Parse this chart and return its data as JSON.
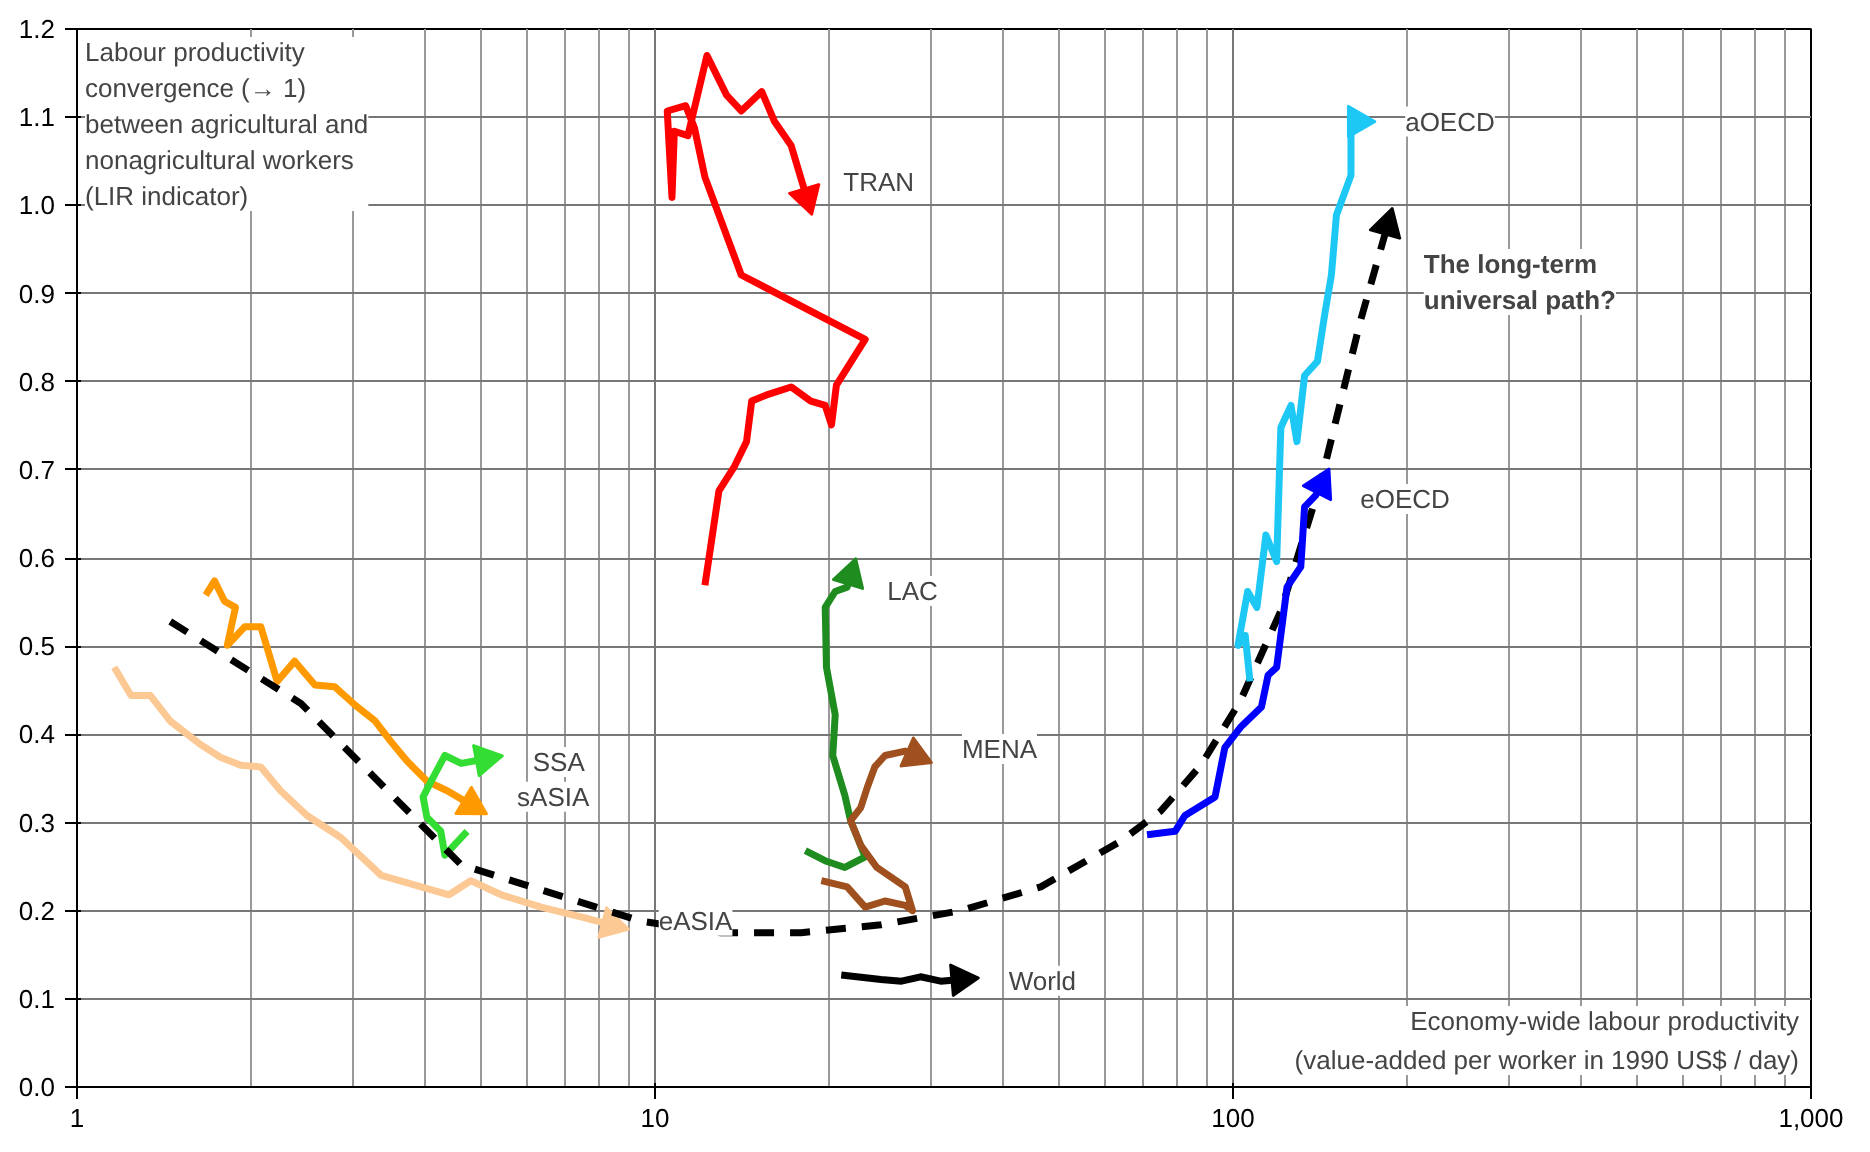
{
  "chart_data": {
    "type": "line",
    "ylabel": "Labour productivity\nconvergence (→ 1)\nbetween agricultural and\nnonagricultural workers\n(LIR indicator)",
    "xlabel": "Economy-wide labour productivity\n(value-added per worker in 1990 US$ / day)",
    "log": "x",
    "grid": true,
    "line_style": "solid",
    "xlim": [
      1,
      1000
    ],
    "ylim": [
      0,
      1.2
    ],
    "xticks": [
      1,
      10,
      100,
      {
        "value": 1000,
        "label": "1,000"
      }
    ],
    "yticks": [
      {
        "value": 0,
        "label": "0.0"
      },
      0.1,
      0.2,
      0.3,
      0.4,
      0.5,
      0.6,
      0.7,
      0.8,
      0.9,
      {
        "value": 1,
        "label": "1.0"
      },
      1.1,
      1.2
    ],
    "series": [
      {
        "name": "eASIA",
        "color": "#fcc894",
        "x": [
          1.16,
          1.24,
          1.34,
          1.45,
          1.64,
          1.77,
          1.92,
          2.08,
          2.25,
          2.5,
          2.86,
          3.36,
          3.94,
          4.4,
          4.8,
          5.42,
          6.35,
          7.45,
          8.4
        ],
        "values": [
          0.476,
          0.444,
          0.444,
          0.415,
          0.388,
          0.374,
          0.365,
          0.363,
          0.336,
          0.308,
          0.283,
          0.24,
          0.227,
          0.218,
          0.234,
          0.218,
          0.204,
          0.193,
          0.184
        ]
      },
      {
        "name": "sASIA",
        "color": "#ff9900",
        "x": [
          1.67,
          1.73,
          1.8,
          1.88,
          1.82,
          1.95,
          2.08,
          2.22,
          2.38,
          2.58,
          2.79,
          3.03,
          3.28,
          3.49,
          3.72,
          4.03,
          4.37,
          4.81
        ],
        "values": [
          0.558,
          0.574,
          0.551,
          0.544,
          0.501,
          0.522,
          0.522,
          0.46,
          0.483,
          0.456,
          0.454,
          0.433,
          0.415,
          0.392,
          0.37,
          0.347,
          0.336,
          0.32
        ]
      },
      {
        "name": "SSA",
        "color": "#33dd33",
        "x": [
          4.73,
          4.33,
          4.26,
          4.03,
          3.97,
          4.1,
          4.33,
          4.62,
          5.08
        ],
        "values": [
          0.29,
          0.263,
          0.29,
          0.306,
          0.329,
          0.347,
          0.376,
          0.367,
          0.372
        ]
      },
      {
        "name": "The long-term universal path?",
        "color": "#000000",
        "line_style": "dashed",
        "x": [
          1.45,
          2.44,
          4.62,
          9.46,
          13.0,
          17.9,
          24.6,
          33.8,
          46.5,
          64.0,
          75.0,
          88.0,
          103,
          121,
          142,
          166,
          185
        ],
        "values": [
          0.528,
          0.435,
          0.252,
          0.188,
          0.175,
          0.175,
          0.184,
          0.2,
          0.227,
          0.279,
          0.313,
          0.365,
          0.438,
          0.54,
          0.687,
          0.868,
          0.977
        ]
      },
      {
        "name": "TRAN",
        "color": "#ff0000",
        "x": [
          12.2,
          12.9,
          13.7,
          14.4,
          14.7,
          15.6,
          17.2,
          18.6,
          19.7,
          20.2,
          20.6,
          23.1,
          14.1,
          12.2,
          11.7,
          11.3,
          10.5,
          10.7,
          10.8,
          11.4,
          12.3,
          13.3,
          14.1,
          15.3,
          16.1,
          17.2,
          18.3
        ],
        "values": [
          0.569,
          0.676,
          0.703,
          0.732,
          0.778,
          0.785,
          0.794,
          0.778,
          0.773,
          0.751,
          0.796,
          0.848,
          0.921,
          1.032,
          1.088,
          1.113,
          1.107,
          1.009,
          1.084,
          1.079,
          1.17,
          1.125,
          1.107,
          1.129,
          1.095,
          1.068,
          1.009
        ]
      },
      {
        "name": "LAC",
        "color": "#1e8c1e",
        "x": [
          18.2,
          19.8,
          21.3,
          23.1,
          21.8,
          21.3,
          20.3,
          20.5,
          19.8,
          19.7,
          20.5,
          21.5,
          21.8
        ],
        "values": [
          0.268,
          0.256,
          0.249,
          0.261,
          0.302,
          0.331,
          0.376,
          0.422,
          0.476,
          0.544,
          0.562,
          0.567,
          0.58
        ]
      },
      {
        "name": "MENA",
        "color": "#a0501e",
        "x": [
          19.4,
          21.5,
          23.1,
          25.0,
          27.1,
          27.9,
          27.1,
          24.2,
          22.7,
          21.8,
          22.7,
          23.3,
          24.0,
          25.0,
          27.1,
          28.2
        ],
        "values": [
          0.234,
          0.227,
          0.204,
          0.211,
          0.206,
          0.2,
          0.227,
          0.249,
          0.274,
          0.302,
          0.317,
          0.34,
          0.363,
          0.376,
          0.381,
          0.376
        ]
      },
      {
        "name": "World",
        "color": "#000000",
        "x": [
          21.0,
          24.6,
          26.7,
          28.8,
          31.2,
          33.8
        ],
        "values": [
          0.127,
          0.122,
          0.12,
          0.125,
          0.12,
          0.122
        ]
      },
      {
        "name": "aOECD",
        "color": "#1ec8f5",
        "x": [
          107,
          105,
          102,
          106,
          110,
          114,
          119,
          121,
          126,
          129,
          133,
          140,
          144,
          148,
          151,
          160,
          160,
          164
        ],
        "values": [
          0.46,
          0.512,
          0.501,
          0.562,
          0.544,
          0.626,
          0.596,
          0.748,
          0.773,
          0.732,
          0.807,
          0.823,
          0.875,
          0.921,
          0.989,
          1.034,
          1.095,
          1.095
        ]
      },
      {
        "name": "eOECD",
        "color": "#0000ff",
        "x": [
          71.0,
          79.4,
          82.6,
          93.1,
          96.8,
          103,
          112,
          115,
          119,
          124,
          131,
          133,
          139,
          142
        ],
        "values": [
          0.286,
          0.29,
          0.308,
          0.329,
          0.385,
          0.408,
          0.431,
          0.467,
          0.476,
          0.567,
          0.59,
          0.658,
          0.671,
          0.683
        ]
      }
    ]
  }
}
